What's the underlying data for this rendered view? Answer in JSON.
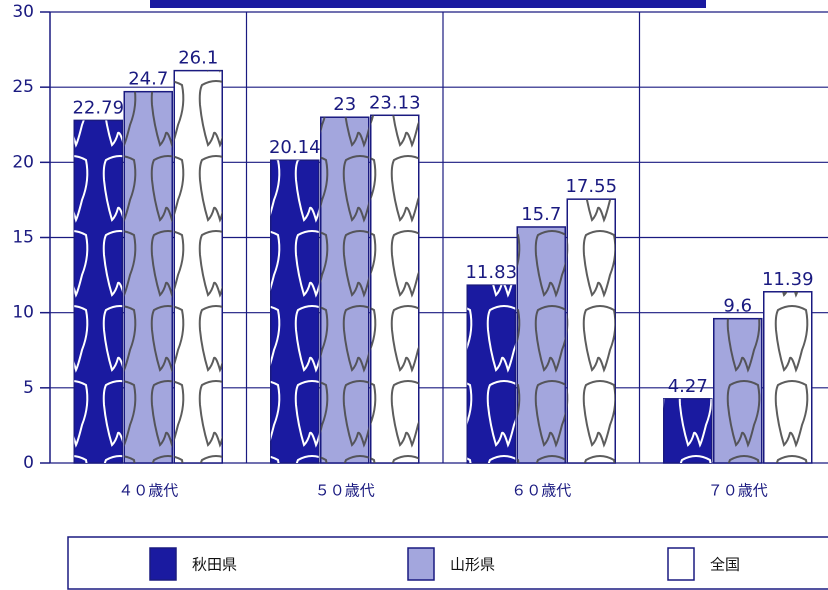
{
  "chart_data": {
    "type": "bar",
    "categories": [
      "４０歳代",
      "５０歳代",
      "６０歳代",
      "７０歳代"
    ],
    "series": [
      {
        "name": "秋田県",
        "color": "#1a1aa0",
        "values": [
          22.79,
          20.14,
          11.83,
          4.27
        ]
      },
      {
        "name": "山形県",
        "color": "#a3a6dd",
        "values": [
          24.7,
          23,
          15.7,
          9.6
        ]
      },
      {
        "name": "全国",
        "color": "#ffffff",
        "values": [
          26.1,
          23.13,
          17.55,
          11.39
        ]
      }
    ],
    "ylim": [
      0,
      30
    ],
    "yticks": [
      0,
      5,
      10,
      15,
      20,
      25,
      30
    ],
    "grid": true,
    "legend": "bottom"
  }
}
